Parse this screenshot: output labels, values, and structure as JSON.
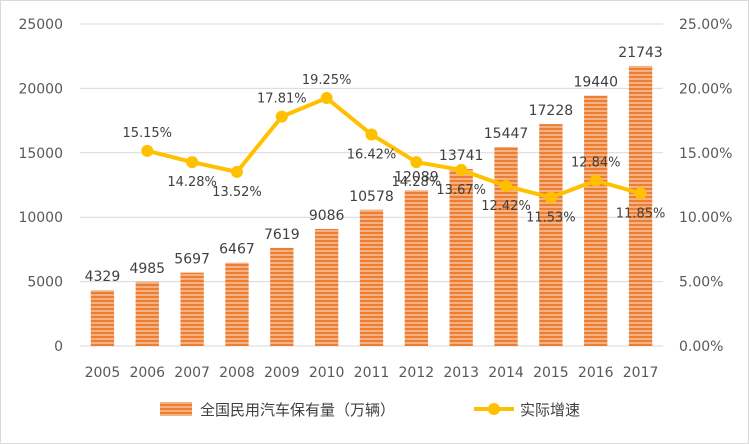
{
  "chart_data": {
    "type": "bar",
    "categories": [
      "2005",
      "2006",
      "2007",
      "2008",
      "2009",
      "2010",
      "2011",
      "2012",
      "2013",
      "2014",
      "2015",
      "2016",
      "2017"
    ],
    "series": [
      {
        "name": "全国民用汽车保有量（万辆）",
        "type": "bar",
        "axis": "left",
        "values": [
          4329,
          4985,
          5697,
          6467,
          7619,
          9086,
          10578,
          12089,
          13741,
          15447,
          17228,
          19440,
          21743
        ],
        "labels": [
          "4329",
          "4985",
          "5697",
          "6467",
          "7619",
          "9086",
          "10578",
          "12089",
          "13741",
          "15447",
          "17228",
          "19440",
          "21743"
        ],
        "color": "#ED7D31"
      },
      {
        "name": "实际增速",
        "type": "line",
        "axis": "right",
        "values": [
          null,
          15.15,
          14.28,
          13.52,
          17.81,
          19.25,
          16.42,
          14.28,
          13.67,
          12.42,
          11.53,
          12.84,
          11.85
        ],
        "labels": [
          "",
          "15.15%",
          "14.28%",
          "13.52%",
          "17.81%",
          "19.25%",
          "16.42%",
          "14.28%",
          "13.67%",
          "12.42%",
          "11.53%",
          "12.84%",
          "11.85%"
        ],
        "color": "#FFC000"
      }
    ],
    "y_left": {
      "ylim": [
        0,
        25000
      ],
      "ticks": [
        "0",
        "5000",
        "10000",
        "15000",
        "20000",
        "25000"
      ]
    },
    "y_right": {
      "ylim": [
        0,
        25
      ],
      "ticks": [
        "0.00%",
        "5.00%",
        "10.00%",
        "15.00%",
        "20.00%",
        "25.00%"
      ]
    },
    "grid": true,
    "legend": "bottom"
  }
}
